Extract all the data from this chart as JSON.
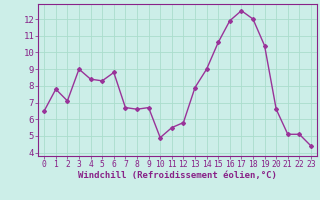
{
  "x": [
    0,
    1,
    2,
    3,
    4,
    5,
    6,
    7,
    8,
    9,
    10,
    11,
    12,
    13,
    14,
    15,
    16,
    17,
    18,
    19,
    20,
    21,
    22,
    23
  ],
  "y": [
    6.5,
    7.8,
    7.1,
    9.0,
    8.4,
    8.3,
    8.8,
    6.7,
    6.6,
    6.7,
    4.9,
    5.5,
    5.8,
    7.9,
    9.0,
    10.6,
    11.9,
    12.5,
    12.0,
    10.4,
    6.6,
    5.1,
    5.1,
    4.4
  ],
  "line_color": "#993399",
  "marker": "D",
  "marker_size": 2.0,
  "bg_color": "#cceee8",
  "grid_color": "#aaddcc",
  "xlabel": "Windchill (Refroidissement éolien,°C)",
  "ylim": [
    3.8,
    12.9
  ],
  "xlim": [
    -0.5,
    23.5
  ],
  "yticks": [
    4,
    5,
    6,
    7,
    8,
    9,
    10,
    11,
    12
  ],
  "xticks": [
    0,
    1,
    2,
    3,
    4,
    5,
    6,
    7,
    8,
    9,
    10,
    11,
    12,
    13,
    14,
    15,
    16,
    17,
    18,
    19,
    20,
    21,
    22,
    23
  ],
  "label_color": "#882288",
  "tick_color": "#882288",
  "ylabel_fontsize": 6.5,
  "xlabel_fontsize": 6.5,
  "tick_fontsize_y": 6.5,
  "tick_fontsize_x": 5.8,
  "linewidth": 1.0
}
